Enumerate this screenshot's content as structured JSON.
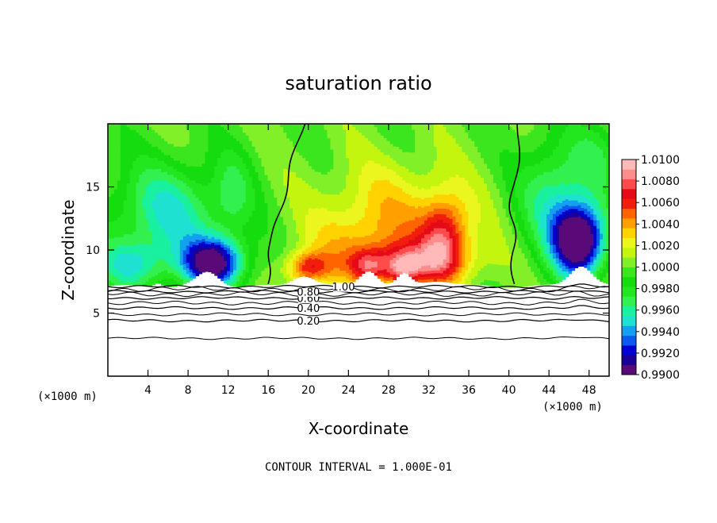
{
  "chart_data": {
    "type": "heatmap",
    "title": "saturation ratio",
    "xlabel": "X-coordinate",
    "ylabel": "Z-coordinate",
    "x_unit": "(×1000 m)",
    "y_unit": "(×1000 m)",
    "xlim": [
      0,
      50
    ],
    "ylim": [
      0,
      20
    ],
    "x_ticks": [
      4,
      8,
      12,
      16,
      20,
      24,
      28,
      32,
      36,
      40,
      44,
      48
    ],
    "y_ticks": [
      5,
      10,
      15
    ],
    "footer": "CONTOUR INTERVAL = 1.000E-01",
    "colorbar": {
      "min": 0.99,
      "max": 1.01,
      "labels": [
        "1.0100",
        "1.0080",
        "1.0060",
        "1.0040",
        "1.0020",
        "1.0000",
        "0.9980",
        "0.9960",
        "0.9940",
        "0.9920",
        "0.9900"
      ],
      "colors": [
        "#5a0a78",
        "#1a0096",
        "#0000d2",
        "#0a5af0",
        "#14a0f0",
        "#1ee1d2",
        "#19f0a0",
        "#32f050",
        "#23e61e",
        "#14dc0f",
        "#3ce61e",
        "#82f028",
        "#c3f50f",
        "#ebf51e",
        "#ffd200",
        "#ffa000",
        "#ff6400",
        "#f01e0a",
        "#e60a19",
        "#ff4b4b",
        "#ff8c8c",
        "#ffb9b9"
      ]
    },
    "contour_levels": [
      {
        "label": "0.20",
        "z": 4.4
      },
      {
        "label": "0.40",
        "z": 5.4
      },
      {
        "label": "0.60",
        "z": 6.2
      },
      {
        "label": "0.80",
        "z": 6.7
      },
      {
        "label": "1.00",
        "z": 7.1
      }
    ],
    "extra_contours_z": [
      3.0,
      4.9,
      5.8,
      6.5,
      6.9
    ],
    "saturation_boundaries_x": [
      {
        "bottom": 16.0,
        "top": 19.5
      },
      {
        "bottom": 40.5,
        "top": 41.0
      }
    ]
  }
}
